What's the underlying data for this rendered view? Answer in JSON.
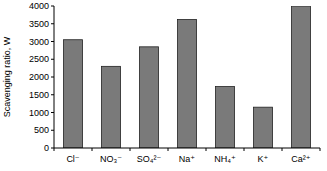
{
  "chart_data": {
    "type": "bar",
    "y_label": "Scavenging ratio, W",
    "categories": [
      "Cl⁻",
      "NO₃⁻",
      "SO₄²⁻",
      "Na⁺",
      "NH₄⁺",
      "K⁺",
      "Ca²⁺"
    ],
    "values": [
      3050,
      2300,
      2850,
      3620,
      1730,
      1150,
      4000
    ],
    "color": "#7a7a7a",
    "ylim": [
      0,
      4000
    ],
    "yticks": [
      0,
      500,
      1000,
      1500,
      2000,
      2500,
      3000,
      3500,
      4000
    ],
    "grid": false
  }
}
